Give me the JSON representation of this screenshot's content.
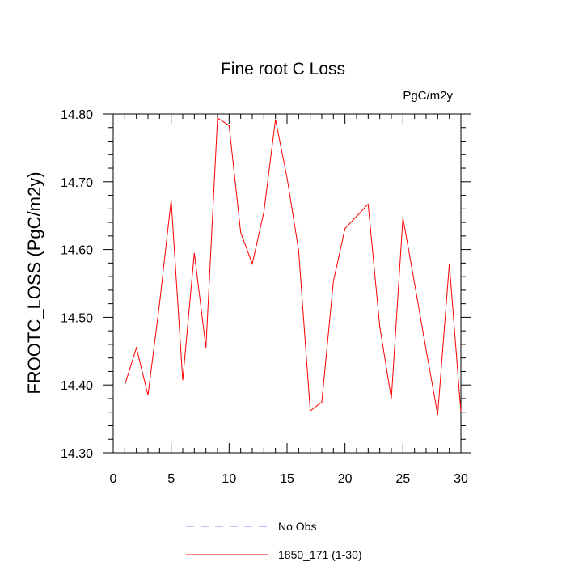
{
  "chart_data": {
    "type": "line",
    "title": "Fine root C Loss",
    "units": "PgC/m2y",
    "xlabel": "",
    "ylabel": "FROOTC_LOSS  (PgC/m2y)",
    "xlim": [
      0,
      30
    ],
    "ylim": [
      14.3,
      14.8
    ],
    "x_ticks": [
      "0",
      "5",
      "10",
      "15",
      "20",
      "25",
      "30"
    ],
    "y_ticks": [
      "14.30",
      "14.40",
      "14.50",
      "14.60",
      "14.70",
      "14.80"
    ],
    "grid": false,
    "legend_position": "bottom",
    "legend": [
      {
        "label": "No Obs",
        "color": "#8080ff",
        "dash": "dashed"
      },
      {
        "label": "1850_171 (1-30)",
        "color": "#ff0000",
        "dash": "solid"
      }
    ],
    "series": [
      {
        "name": "1850_171 (1-30)",
        "color": "#ff0000",
        "x": [
          1,
          2,
          3,
          4,
          5,
          6,
          7,
          8,
          9,
          10,
          11,
          12,
          13,
          14,
          15,
          16,
          17,
          18,
          19,
          20,
          21,
          22,
          23,
          24,
          25,
          26,
          27,
          28,
          29,
          30
        ],
        "values": [
          14.4,
          14.455,
          14.385,
          14.52,
          14.673,
          14.407,
          14.595,
          14.455,
          14.794,
          14.783,
          14.625,
          14.579,
          14.655,
          14.792,
          14.706,
          14.599,
          14.362,
          14.375,
          14.553,
          14.631,
          14.649,
          14.667,
          14.486,
          14.38,
          14.647,
          14.55,
          14.452,
          14.356,
          14.579,
          14.36
        ]
      }
    ]
  }
}
